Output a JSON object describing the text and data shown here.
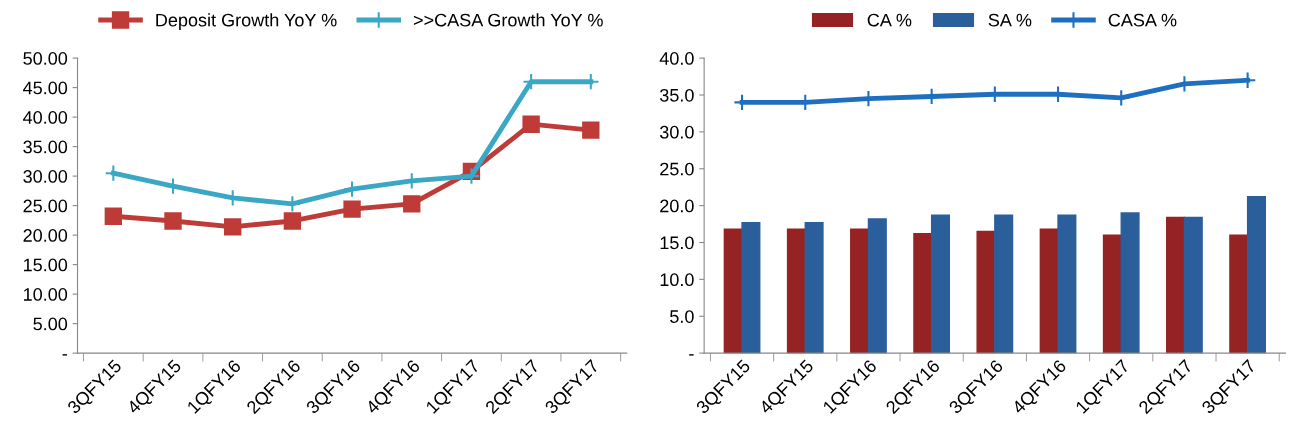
{
  "chart_data": [
    {
      "type": "line",
      "categories": [
        "3QFY15",
        "4QFY15",
        "1QFY16",
        "2QFY16",
        "3QFY16",
        "4QFY16",
        "1QFY17",
        "2QFY17",
        "3QFY17"
      ],
      "series": [
        {
          "name": "Deposit Growth YoY %",
          "color": "#be3b38",
          "marker": "square",
          "values": [
            23.2,
            22.4,
            21.4,
            22.4,
            24.4,
            25.3,
            30.8,
            38.8,
            37.8
          ]
        },
        {
          "name": ">>CASA Growth YoY %",
          "color": "#3aa8c4",
          "marker": "cross",
          "values": [
            30.5,
            28.3,
            26.3,
            25.3,
            27.8,
            29.2,
            30.0,
            46.0,
            46.0
          ]
        }
      ],
      "ylim": [
        0,
        50
      ],
      "yticks": [
        {
          "value": 0,
          "label": "-"
        },
        {
          "value": 5,
          "label": "5.00"
        },
        {
          "value": 10,
          "label": "10.00"
        },
        {
          "value": 15,
          "label": "15.00"
        },
        {
          "value": 20,
          "label": "20.00"
        },
        {
          "value": 25,
          "label": "25.00"
        },
        {
          "value": 30,
          "label": "30.00"
        },
        {
          "value": 35,
          "label": "35.00"
        },
        {
          "value": 40,
          "label": "40.00"
        },
        {
          "value": 45,
          "label": "45.00"
        },
        {
          "value": 50,
          "label": "50.00"
        }
      ],
      "legend": "top",
      "grid": false,
      "line_style": "solid"
    },
    {
      "type": "bar",
      "categories": [
        "3QFY15",
        "4QFY15",
        "1QFY16",
        "2QFY16",
        "3QFY16",
        "4QFY16",
        "1QFY17",
        "2QFY17",
        "3QFY17"
      ],
      "series": [
        {
          "name": "CA %",
          "color": "#962323",
          "values": [
            16.8,
            16.8,
            16.8,
            16.2,
            16.5,
            16.8,
            16.0,
            18.4,
            16.0
          ]
        },
        {
          "name": "SA %",
          "color": "#2b5f9c",
          "values": [
            17.7,
            17.7,
            18.2,
            18.7,
            18.7,
            18.7,
            19.0,
            18.4,
            21.2
          ]
        },
        {
          "name": "CASA %",
          "type": "line",
          "color": "#1f6fc0",
          "marker": "cross",
          "values": [
            34.0,
            34.0,
            34.5,
            34.8,
            35.1,
            35.1,
            34.6,
            36.5,
            37.0
          ]
        }
      ],
      "ylim": [
        0,
        40
      ],
      "yticks": [
        {
          "value": 0,
          "label": "-"
        },
        {
          "value": 5,
          "label": "5.0"
        },
        {
          "value": 10,
          "label": "10.0"
        },
        {
          "value": 15,
          "label": "15.0"
        },
        {
          "value": 20,
          "label": "20.0"
        },
        {
          "value": 25,
          "label": "25.0"
        },
        {
          "value": 30,
          "label": "30.0"
        },
        {
          "value": 35,
          "label": "35.0"
        },
        {
          "value": 40,
          "label": "40.0"
        }
      ],
      "legend": "top",
      "grid": false,
      "line_style": "solid"
    }
  ]
}
